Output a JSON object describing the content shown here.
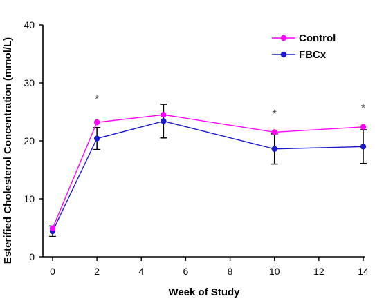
{
  "chart_data": {
    "type": "line",
    "xlabel": "Week of Study",
    "ylabel": "Esterified Cholesterol Concentration (mmol/L)",
    "xlim": [
      0,
      14
    ],
    "ylim": [
      0,
      40
    ],
    "xticks": [
      "0",
      "2",
      "4",
      "6",
      "8",
      "10",
      "12",
      "14"
    ],
    "yticks": [
      "0",
      "10",
      "20",
      "30",
      "40"
    ],
    "grid": false,
    "legend_position": "top-right",
    "series": [
      {
        "name": "Control",
        "color": "#ff00ff",
        "x": [
          0,
          2,
          5,
          10,
          14
        ],
        "y": [
          4.9,
          23.2,
          24.5,
          21.5,
          22.4
        ],
        "err": [
          0,
          0,
          0,
          0,
          0
        ]
      },
      {
        "name": "FBCx",
        "color": "#1a1acc",
        "x": [
          0,
          2,
          5,
          10,
          14
        ],
        "y": [
          4.4,
          20.4,
          23.4,
          18.6,
          19.0
        ],
        "err": [
          0.9,
          1.9,
          2.9,
          2.6,
          2.9
        ]
      }
    ],
    "annotations": [
      {
        "text": "*",
        "x": 2,
        "y": 27.5
      },
      {
        "text": "*",
        "x": 10,
        "y": 25.0
      },
      {
        "text": "*",
        "x": 14,
        "y": 26.0
      }
    ]
  }
}
